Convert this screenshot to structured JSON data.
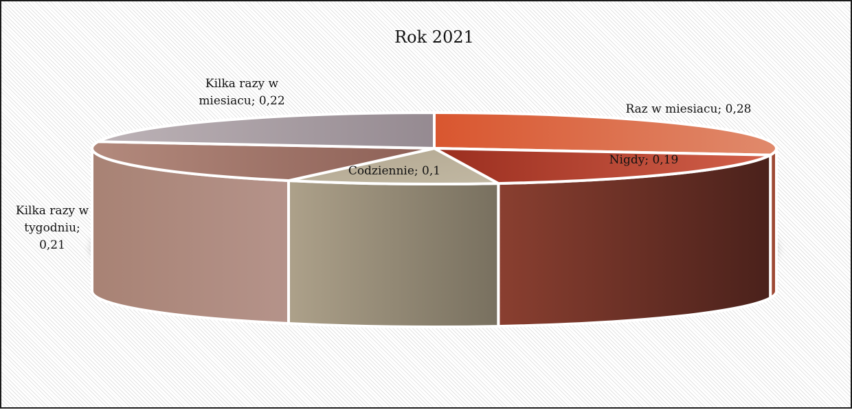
{
  "chart_data": {
    "type": "pie",
    "title": "Rok 2021",
    "slices": [
      {
        "name": "Raz w miesiacu",
        "value": 0.28,
        "label": "Raz w miesiacu; 0,28",
        "color": "#d9714f"
      },
      {
        "name": "Nigdy",
        "value": 0.19,
        "label": "Nigdy; 0,19",
        "color": "#b84a35"
      },
      {
        "name": "Codziennie",
        "value": 0.1,
        "label": "Codziennie; 0,1",
        "color": "#b8ae96"
      },
      {
        "name": "Kilka razy w tygodniu",
        "value": 0.21,
        "label": "Kilka razy w tygodniu; 0,21",
        "color": "#a98578"
      },
      {
        "name": "Kilka razy w miesiacu",
        "value": 0.22,
        "label": "Kilka razy w miesiacu; 0,22",
        "color": "#a59aa0"
      }
    ],
    "legend": "none",
    "style": "3d-pie"
  }
}
